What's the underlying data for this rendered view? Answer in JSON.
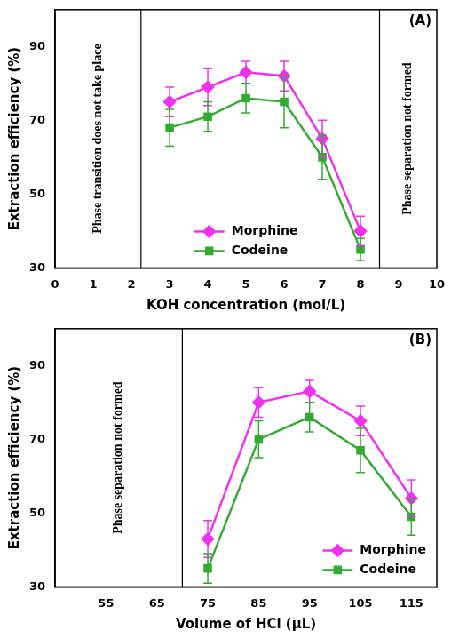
{
  "chart_data": [
    {
      "type": "line",
      "title": "(A)",
      "x_label": "KOH concentration (mol/L)",
      "y_label": "Extraction efficiency (%)",
      "xlim": [
        0,
        10
      ],
      "xticks": [
        0,
        1,
        2,
        3,
        4,
        5,
        6,
        7,
        8,
        9,
        10
      ],
      "ylim": [
        30,
        100
      ],
      "yticks": [
        30,
        50,
        70,
        90
      ],
      "grid": false,
      "legend": "lower center",
      "regions": [
        {
          "x": [
            0,
            2.25
          ],
          "label": "Phase transition does not take place"
        },
        {
          "x": [
            8.5,
            10
          ],
          "label": "Phase separation not formed"
        }
      ],
      "x": [
        3,
        4,
        5,
        6,
        7,
        8
      ],
      "series": [
        {
          "name": "Morphine",
          "color": "#ee33ee",
          "marker": "diamond",
          "values": [
            75,
            79,
            83,
            82,
            65,
            40
          ],
          "errors": [
            4,
            5,
            3,
            4,
            5,
            4
          ]
        },
        {
          "name": "Codeine",
          "color": "#33aa33",
          "marker": "square",
          "values": [
            68,
            71,
            76,
            75,
            60,
            35
          ],
          "errors": [
            5,
            4,
            4,
            7,
            6,
            3
          ]
        }
      ]
    },
    {
      "type": "line",
      "title": "(B)",
      "x_label": "Volume of HCl (μL)",
      "y_label": "Extraction efficiency (%)",
      "xlim": [
        45,
        120
      ],
      "xticks": [
        55,
        65,
        75,
        85,
        95,
        105,
        115
      ],
      "ylim": [
        30,
        100
      ],
      "yticks": [
        30,
        50,
        70,
        90
      ],
      "grid": false,
      "legend": "lower right",
      "regions": [
        {
          "x": [
            45,
            70
          ],
          "label": "Phase separation not formed"
        }
      ],
      "x": [
        75,
        85,
        95,
        105,
        115
      ],
      "series": [
        {
          "name": "Morphine",
          "color": "#ee33ee",
          "marker": "diamond",
          "values": [
            43,
            80,
            83,
            75,
            54
          ],
          "errors": [
            5,
            4,
            3,
            4,
            5
          ]
        },
        {
          "name": "Codeine",
          "color": "#33aa33",
          "marker": "square",
          "values": [
            35,
            70,
            76,
            67,
            49
          ],
          "errors": [
            4,
            5,
            4,
            6,
            5
          ]
        }
      ]
    }
  ]
}
